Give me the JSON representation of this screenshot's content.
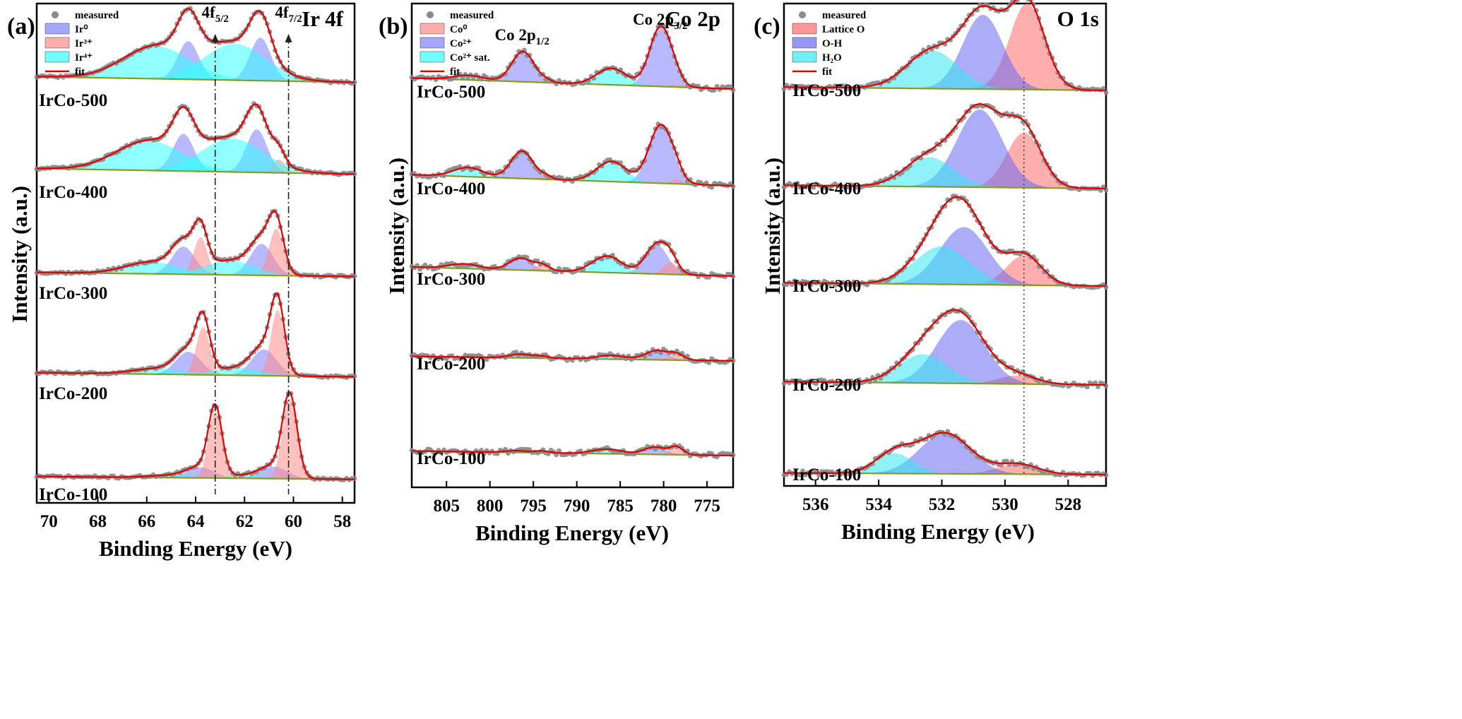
{
  "figure": {
    "panels": [
      {
        "panel_label": "(a)",
        "title": "Ir 4f",
        "xlabel": "Binding Energy (eV)",
        "ylabel": "Intensity (a.u.)",
        "xlim": [
          70.5,
          57.5
        ],
        "xticks": [
          70,
          68,
          66,
          64,
          62,
          60,
          58
        ],
        "legend": [
          {
            "label": "measured",
            "kind": "marker",
            "color": "#8a8a8a"
          },
          {
            "label": "Ir⁰",
            "kind": "patch",
            "color": "#8080ff"
          },
          {
            "label": "Ir³⁺",
            "kind": "patch",
            "color": "#ff8c8c"
          },
          {
            "label": "Ir⁴⁺",
            "kind": "patch",
            "color": "#33ffff"
          },
          {
            "label": "fit",
            "kind": "line",
            "color": "#e00000"
          }
        ],
        "annotations": [
          {
            "text": "4f",
            "sub": "5/2",
            "x": 63.2
          },
          {
            "text": "4f",
            "sub": "7/2",
            "x": 60.2
          }
        ],
        "reference_lines": [
          63.2,
          60.2
        ],
        "reference_style": "dashdot-arrow"
      },
      {
        "panel_label": "(b)",
        "title": "Co 2p",
        "xlabel": "Binding Energy (eV)",
        "ylabel": "Intensity (a.u.)",
        "xlim": [
          809,
          772
        ],
        "xticks": [
          805,
          800,
          795,
          790,
          785,
          780,
          775
        ],
        "legend": [
          {
            "label": "measured",
            "kind": "marker",
            "color": "#8a8a8a"
          },
          {
            "label": "Co⁰",
            "kind": "patch",
            "color": "#ff8c8c"
          },
          {
            "label": "Co²⁺",
            "kind": "patch",
            "color": "#8080ff"
          },
          {
            "label": "Co²⁺ sat.",
            "kind": "patch",
            "color": "#33ffff"
          },
          {
            "label": "fit",
            "kind": "line",
            "color": "#e00000"
          }
        ],
        "annotations": [
          {
            "text": "Co 2p",
            "sub": "1/2",
            "x": 796.3
          },
          {
            "text": "Co 2p",
            "sub": "3/2",
            "x": 780.4
          }
        ],
        "reference_lines": [],
        "reference_style": "none"
      },
      {
        "panel_label": "(c)",
        "title": "O 1s",
        "xlabel": "Binding Energy (eV)",
        "ylabel": "Intensity (a.u.)",
        "xlim": [
          537,
          526.8
        ],
        "xticks": [
          536,
          534,
          532,
          530,
          528
        ],
        "legend": [
          {
            "label": "measured",
            "kind": "marker",
            "color": "#8a8a8a"
          },
          {
            "label": "Lattice O",
            "kind": "patch",
            "color": "#ff6b6b"
          },
          {
            "label": "O-H",
            "kind": "patch",
            "color": "#6a6af0"
          },
          {
            "label": "H₂O",
            "kind": "patch",
            "color": "#33e8f0"
          },
          {
            "label": "fit",
            "kind": "line",
            "color": "#e00000"
          }
        ],
        "annotations": [],
        "reference_lines": [
          529.4
        ],
        "reference_style": "dotted"
      }
    ]
  },
  "chart_data": [
    {
      "type": "line",
      "title": "Ir 4f",
      "xlabel": "Binding Energy (eV)",
      "ylabel": "Intensity (a.u.)",
      "xlim": [
        70.5,
        57.5
      ],
      "spectra": [
        {
          "name": "IrCo-500",
          "offset": 4,
          "amp": 0.52,
          "background": {
            "high": 0.2,
            "low": 0.08
          },
          "components": [
            {
              "name": "Ir⁰",
              "center": 64.3,
              "height": 0.8,
              "fwhm": 1.0
            },
            {
              "name": "Ir⁰",
              "center": 61.35,
              "height": 0.9,
              "fwhm": 1.0
            },
            {
              "name": "Ir⁴⁺",
              "center": 65.6,
              "height": 0.68,
              "fwhm": 3.2
            },
            {
              "name": "Ir⁴⁺",
              "center": 62.4,
              "height": 0.76,
              "fwhm": 3.0
            }
          ]
        },
        {
          "name": "IrCo-400",
          "offset": 3,
          "amp": 0.52,
          "background": {
            "high": 0.2,
            "low": 0.08
          },
          "components": [
            {
              "name": "Ir⁰",
              "center": 64.5,
              "height": 0.78,
              "fwhm": 1.0
            },
            {
              "name": "Ir⁰",
              "center": 61.5,
              "height": 0.9,
              "fwhm": 1.0
            },
            {
              "name": "Ir³⁺",
              "center": 60.6,
              "height": 0.28,
              "fwhm": 0.6
            },
            {
              "name": "Ir⁴⁺",
              "center": 65.9,
              "height": 0.62,
              "fwhm": 3.2
            },
            {
              "name": "Ir⁴⁺",
              "center": 62.5,
              "height": 0.7,
              "fwhm": 3.0
            }
          ]
        },
        {
          "name": "IrCo-300",
          "offset": 2,
          "amp": 0.52,
          "background": {
            "high": 0.14,
            "low": 0.05
          },
          "components": [
            {
              "name": "Ir⁰",
              "center": 64.5,
              "height": 0.58,
              "fwhm": 1.1
            },
            {
              "name": "Ir⁰",
              "center": 61.3,
              "height": 0.66,
              "fwhm": 1.1
            },
            {
              "name": "Ir³⁺",
              "center": 63.8,
              "height": 0.78,
              "fwhm": 0.65
            },
            {
              "name": "Ir³⁺",
              "center": 60.7,
              "height": 0.98,
              "fwhm": 0.7
            },
            {
              "name": "Ir⁴⁺",
              "center": 65.8,
              "height": 0.25,
              "fwhm": 2.5
            },
            {
              "name": "Ir⁴⁺",
              "center": 62.6,
              "height": 0.3,
              "fwhm": 2.3
            }
          ]
        },
        {
          "name": "IrCo-200",
          "offset": 1,
          "amp": 0.52,
          "background": {
            "high": 0.14,
            "low": 0.05
          },
          "components": [
            {
              "name": "Ir⁰",
              "center": 64.3,
              "height": 0.48,
              "fwhm": 1.2
            },
            {
              "name": "Ir⁰",
              "center": 61.2,
              "height": 0.55,
              "fwhm": 1.2
            },
            {
              "name": "Ir³⁺",
              "center": 63.7,
              "height": 1.0,
              "fwhm": 0.65
            },
            {
              "name": "Ir³⁺",
              "center": 60.65,
              "height": 1.38,
              "fwhm": 0.65
            },
            {
              "name": "Ir⁴⁺",
              "center": 65.5,
              "height": 0.12,
              "fwhm": 2.4
            },
            {
              "name": "Ir⁴⁺",
              "center": 62.3,
              "height": 0.15,
              "fwhm": 2.2
            }
          ]
        },
        {
          "name": "IrCo-100",
          "offset": 0,
          "amp": 0.52,
          "background": {
            "high": 0.08,
            "low": 0.02
          },
          "components": [
            {
              "name": "Ir⁰",
              "center": 63.8,
              "height": 0.22,
              "fwhm": 1.3
            },
            {
              "name": "Ir⁰",
              "center": 60.8,
              "height": 0.25,
              "fwhm": 1.3
            },
            {
              "name": "Ir³⁺",
              "center": 63.2,
              "height": 1.4,
              "fwhm": 0.65
            },
            {
              "name": "Ir³⁺",
              "center": 60.15,
              "height": 1.68,
              "fwhm": 0.7
            },
            {
              "name": "Ir⁴⁺",
              "center": 65.0,
              "height": 0.05,
              "fwhm": 2.0
            },
            {
              "name": "Ir⁴⁺",
              "center": 62.0,
              "height": 0.06,
              "fwhm": 2.0
            }
          ]
        }
      ]
    },
    {
      "type": "line",
      "title": "Co 2p",
      "xlabel": "Binding Energy (eV)",
      "ylabel": "Intensity (a.u.)",
      "xlim": [
        809,
        772
      ],
      "spectra": [
        {
          "name": "IrCo-500",
          "offset": 4,
          "amp": 1.0,
          "background": {
            "high": 0.12,
            "low": 0.0
          },
          "components": [
            {
              "name": "Co²⁺",
              "center": 796.2,
              "height": 0.33,
              "fwhm": 3.0
            },
            {
              "name": "Co²⁺",
              "center": 780.3,
              "height": 0.66,
              "fwhm": 3.0
            },
            {
              "name": "Co²⁺ sat.",
              "center": 802.5,
              "height": 0.05,
              "fwhm": 4.0
            },
            {
              "name": "Co²⁺ sat.",
              "center": 786.0,
              "height": 0.18,
              "fwhm": 4.0
            },
            {
              "name": "Co⁰",
              "center": 793.5,
              "height": 0.02,
              "fwhm": 1.5
            },
            {
              "name": "Co⁰",
              "center": 778.5,
              "height": 0.03,
              "fwhm": 1.5
            }
          ]
        },
        {
          "name": "IrCo-400",
          "offset": 3,
          "amp": 1.0,
          "background": {
            "high": 0.12,
            "low": 0.0
          },
          "components": [
            {
              "name": "Co²⁺",
              "center": 796.3,
              "height": 0.3,
              "fwhm": 3.0
            },
            {
              "name": "Co²⁺",
              "center": 780.3,
              "height": 0.64,
              "fwhm": 3.2
            },
            {
              "name": "Co²⁺ sat.",
              "center": 802.5,
              "height": 0.1,
              "fwhm": 4.0
            },
            {
              "name": "Co²⁺ sat.",
              "center": 786.0,
              "height": 0.22,
              "fwhm": 4.0
            },
            {
              "name": "Co⁰",
              "center": 793.5,
              "height": 0.03,
              "fwhm": 1.5
            },
            {
              "name": "Co⁰",
              "center": 778.5,
              "height": 0.05,
              "fwhm": 1.5
            }
          ]
        },
        {
          "name": "IrCo-300",
          "offset": 2,
          "amp": 1.0,
          "background": {
            "high": 0.1,
            "low": 0.0
          },
          "components": [
            {
              "name": "Co²⁺",
              "center": 796.5,
              "height": 0.13,
              "fwhm": 3.0
            },
            {
              "name": "Co²⁺",
              "center": 780.8,
              "height": 0.32,
              "fwhm": 3.0
            },
            {
              "name": "Co²⁺ sat.",
              "center": 803.0,
              "height": 0.05,
              "fwhm": 4.0
            },
            {
              "name": "Co²⁺ sat.",
              "center": 786.5,
              "height": 0.18,
              "fwhm": 4.0
            },
            {
              "name": "Co⁰",
              "center": 794.0,
              "height": 0.06,
              "fwhm": 2.0
            },
            {
              "name": "Co⁰",
              "center": 779.2,
              "height": 0.13,
              "fwhm": 2.0
            }
          ]
        },
        {
          "name": "IrCo-200",
          "offset": 1,
          "amp": 1.0,
          "background": {
            "high": 0.05,
            "low": 0.0
          },
          "components": [
            {
              "name": "Co²⁺",
              "center": 796.5,
              "height": 0.04,
              "fwhm": 3.0
            },
            {
              "name": "Co²⁺",
              "center": 780.8,
              "height": 0.1,
              "fwhm": 3.0
            },
            {
              "name": "Co²⁺ sat.",
              "center": 786.0,
              "height": 0.04,
              "fwhm": 4.0
            },
            {
              "name": "Co⁰",
              "center": 794.0,
              "height": 0.02,
              "fwhm": 2.0
            },
            {
              "name": "Co⁰",
              "center": 778.5,
              "height": 0.06,
              "fwhm": 2.0
            }
          ]
        },
        {
          "name": "IrCo-100",
          "offset": 0,
          "amp": 1.0,
          "background": {
            "high": 0.05,
            "low": 0.0
          },
          "components": [
            {
              "name": "Co²⁺",
              "center": 797.0,
              "height": 0.02,
              "fwhm": 3.0
            },
            {
              "name": "Co²⁺",
              "center": 781.0,
              "height": 0.08,
              "fwhm": 3.0
            },
            {
              "name": "Co²⁺ sat.",
              "center": 786.5,
              "height": 0.05,
              "fwhm": 4.0
            },
            {
              "name": "Co⁰",
              "center": 794.0,
              "height": 0.02,
              "fwhm": 2.0
            },
            {
              "name": "Co⁰",
              "center": 778.5,
              "height": 0.08,
              "fwhm": 1.8
            }
          ]
        }
      ]
    },
    {
      "type": "line",
      "title": "O 1s",
      "xlabel": "Binding Energy (eV)",
      "ylabel": "Intensity (a.u.)",
      "xlim": [
        537,
        526.8
      ],
      "spectra": [
        {
          "name": "IrCo-500",
          "offset": 4,
          "amp": 0.92,
          "background": {
            "high": 0.04,
            "low": 0.0
          },
          "components": [
            {
              "name": "Lattice O",
              "center": 529.3,
              "height": 1.02,
              "fwhm": 1.3
            },
            {
              "name": "O-H",
              "center": 530.7,
              "height": 0.88,
              "fwhm": 1.5
            },
            {
              "name": "H₂O",
              "center": 532.3,
              "height": 0.45,
              "fwhm": 1.9
            }
          ]
        },
        {
          "name": "IrCo-400",
          "offset": 3,
          "amp": 0.92,
          "background": {
            "high": 0.04,
            "low": 0.0
          },
          "components": [
            {
              "name": "Lattice O",
              "center": 529.4,
              "height": 0.65,
              "fwhm": 1.3
            },
            {
              "name": "O-H",
              "center": 530.8,
              "height": 0.92,
              "fwhm": 1.7
            },
            {
              "name": "H₂O",
              "center": 532.4,
              "height": 0.35,
              "fwhm": 1.8
            }
          ]
        },
        {
          "name": "IrCo-300",
          "offset": 2,
          "amp": 0.92,
          "background": {
            "high": 0.04,
            "low": 0.0
          },
          "components": [
            {
              "name": "Lattice O",
              "center": 529.4,
              "height": 0.35,
              "fwhm": 1.3
            },
            {
              "name": "O-H",
              "center": 531.3,
              "height": 0.68,
              "fwhm": 1.8
            },
            {
              "name": "H₂O",
              "center": 532.0,
              "height": 0.45,
              "fwhm": 2.0
            }
          ]
        },
        {
          "name": "IrCo-200",
          "offset": 1,
          "amp": 0.92,
          "background": {
            "high": 0.04,
            "low": 0.0
          },
          "components": [
            {
              "name": "Lattice O",
              "center": 529.6,
              "height": 0.1,
              "fwhm": 1.4
            },
            {
              "name": "O-H",
              "center": 531.4,
              "height": 0.75,
              "fwhm": 1.8
            },
            {
              "name": "H₂O",
              "center": 532.6,
              "height": 0.34,
              "fwhm": 1.8
            }
          ]
        },
        {
          "name": "IrCo-100",
          "offset": 0,
          "amp": 0.92,
          "background": {
            "high": 0.02,
            "low": 0.0
          },
          "components": [
            {
              "name": "Lattice O",
              "center": 529.6,
              "height": 0.12,
              "fwhm": 1.5
            },
            {
              "name": "O-H",
              "center": 531.9,
              "height": 0.48,
              "fwhm": 1.9
            },
            {
              "name": "H₂O",
              "center": 533.5,
              "height": 0.24,
              "fwhm": 1.4
            }
          ]
        }
      ]
    }
  ]
}
